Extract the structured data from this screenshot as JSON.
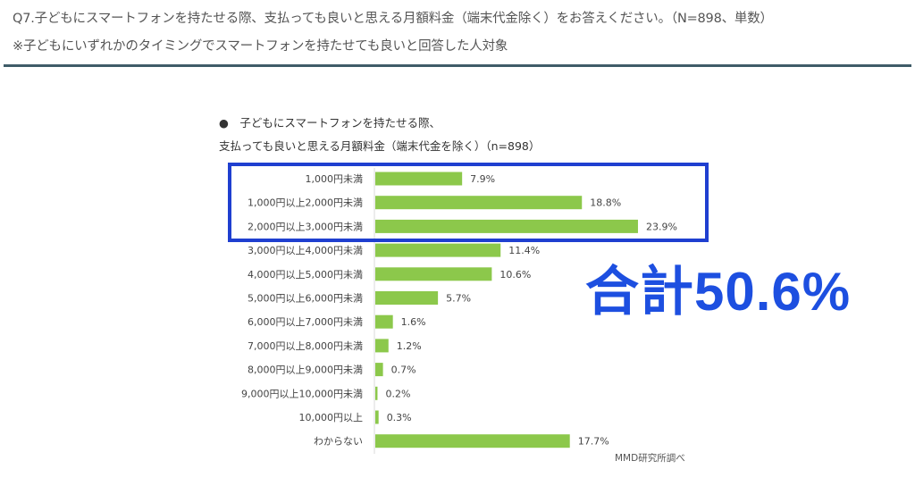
{
  "header": {
    "question": "Q7.子どもにスマートフォンを持たせる際、支払っても良いと思える月額料金（端末代金除く）をお答えください。（N=898、単数）",
    "note": "※子どもにいずれかのタイミングでスマートフォンを持たせても良いと回答した人対象"
  },
  "chart_data": {
    "type": "bar",
    "orientation": "horizontal",
    "title_line1": "●　子どもにスマートフォンを持たせる際、",
    "title_line2": "支払っても良いと思える月額料金（端末代金を除く）（n=898）",
    "categories": [
      "1,000円未満",
      "1,000円以上2,000円未満",
      "2,000円以上3,000円未満",
      "3,000円以上4,000円未満",
      "4,000円以上5,000円未満",
      "5,000円以上6,000円未満",
      "6,000円以上7,000円未満",
      "7,000円以上8,000円未満",
      "8,000円以上9,000円未満",
      "9,000円以上10,000円未満",
      "10,000円以上",
      "わからない"
    ],
    "values": [
      7.9,
      18.8,
      23.9,
      11.4,
      10.6,
      5.7,
      1.6,
      1.2,
      0.7,
      0.2,
      0.3,
      17.7
    ],
    "labels": [
      "7.9%",
      "18.8%",
      "23.9%",
      "11.4%",
      "10.6%",
      "5.7%",
      "1.6%",
      "1.2%",
      "0.7%",
      "0.2%",
      "0.3%",
      "17.7%"
    ],
    "unit": "%",
    "bar_color": "#8cc84b",
    "source": "MMD研究所調べ"
  },
  "annotation": {
    "total_text": "合計50.6%",
    "color": "#1d4fe0"
  }
}
